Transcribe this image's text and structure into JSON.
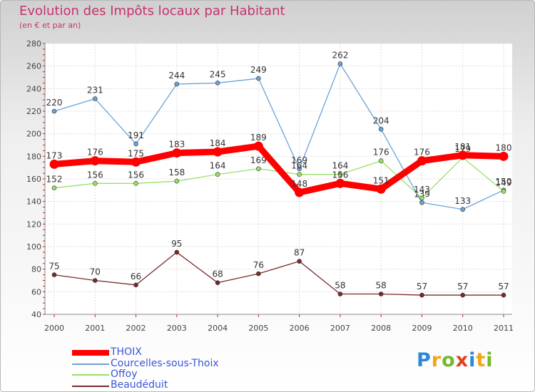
{
  "chart_data": {
    "type": "line",
    "title": "Evolution des Impôts locaux par Habitant",
    "subtitle": "(en € et par an)",
    "xlabel": "",
    "ylabel": "",
    "ylim": [
      40,
      280
    ],
    "yticks": [
      "40",
      "60",
      "80",
      "100",
      "120",
      "140",
      "160",
      "180",
      "200",
      "220",
      "240",
      "260",
      "280"
    ],
    "categories": [
      "2000",
      "2001",
      "2002",
      "2003",
      "2004",
      "2005",
      "2006",
      "2007",
      "2008",
      "2009",
      "2010",
      "2011"
    ],
    "grid": true,
    "legend_position": "bottom-left",
    "series": [
      {
        "name": "THOIX",
        "color": "#ff0000",
        "values": [
          173,
          176,
          175,
          183,
          184,
          189,
          148,
          156,
          151,
          176,
          181,
          180
        ]
      },
      {
        "name": "Courcelles-sous-Thoix",
        "color": "#6ba3d6",
        "values": [
          220,
          231,
          191,
          244,
          245,
          249,
          169,
          262,
          204,
          139,
          133,
          150
        ]
      },
      {
        "name": "Offoy",
        "color": "#99e066",
        "values": [
          152,
          156,
          156,
          158,
          164,
          169,
          164,
          164,
          176,
          143,
          179,
          149
        ]
      },
      {
        "name": "Beaudéduit",
        "color": "#7a2a2a",
        "values": [
          75,
          70,
          66,
          95,
          68,
          76,
          87,
          58,
          58,
          57,
          57,
          57
        ]
      }
    ]
  },
  "brand": {
    "letters": [
      "P",
      "r",
      "o",
      "x",
      "i",
      "t",
      "i"
    ],
    "colors": [
      "#2e86d6",
      "#f2a516",
      "#74b82e",
      "#e0401c",
      "#2e86d6",
      "#f2a516",
      "#74b82e"
    ]
  }
}
